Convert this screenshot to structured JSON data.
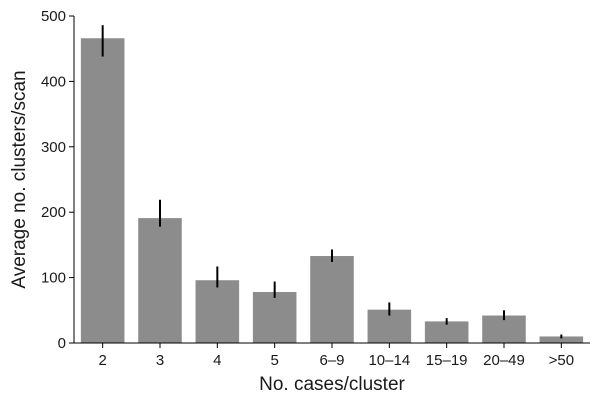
{
  "chart_data": {
    "type": "bar",
    "title": "",
    "xlabel": "No. cases/cluster",
    "ylabel": "Average no. clusters/scan",
    "categories": [
      "2",
      "3",
      "4",
      "5",
      "6–9",
      "10–14",
      "15–19",
      "20–49",
      ">50"
    ],
    "values": [
      466,
      191,
      96,
      78,
      133,
      51,
      33,
      42,
      10
    ],
    "error_low": [
      438,
      178,
      85,
      69,
      124,
      42,
      28,
      35,
      7
    ],
    "error_high": [
      486,
      219,
      117,
      94,
      143,
      62,
      38,
      50,
      13
    ],
    "ylim": [
      0,
      500
    ],
    "yticks": [
      0,
      100,
      200,
      300,
      400,
      500
    ],
    "grid": false,
    "bar_color": "#8c8c8c",
    "error_color": "#000000",
    "axis_color": "#000000"
  }
}
